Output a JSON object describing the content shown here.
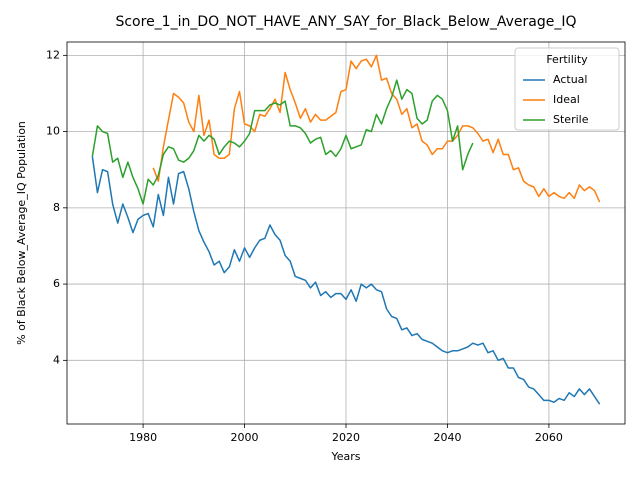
{
  "chart_data": {
    "type": "line",
    "title": "Score_1_in_DO_NOT_HAVE_ANY_SAY_for_Black_Below_Average_IQ",
    "xlabel": "Years",
    "ylabel": "% of Black Below_Average_IQ Population",
    "legend_title": "Fertility",
    "legend": "upper right",
    "grid": true,
    "x": [
      1970,
      1971,
      1972,
      1973,
      1974,
      1975,
      1976,
      1977,
      1978,
      1979,
      1980,
      1981,
      1982,
      1983,
      1984,
      1985,
      1986,
      1987,
      1988,
      1989,
      1990,
      1991,
      1992,
      1993,
      1994,
      1995,
      1996,
      1997,
      1998,
      1999,
      2000,
      2001,
      2002,
      2003,
      2004,
      2005,
      2006,
      2007,
      2008,
      2009,
      2010,
      2011,
      2012,
      2013,
      2014,
      2015,
      2016,
      2017,
      2018,
      2019,
      2020,
      2021,
      2022,
      2023,
      2024,
      2025,
      2026,
      2027,
      2028,
      2029,
      2030,
      2031,
      2032,
      2033,
      2034,
      2035,
      2036,
      2037,
      2038,
      2039,
      2040,
      2041,
      2042,
      2043,
      2044,
      2045,
      2046,
      2047,
      2048,
      2049,
      2050,
      2051,
      2052,
      2053,
      2054,
      2055,
      2056,
      2057,
      2058,
      2059,
      2060,
      2061,
      2062,
      2063,
      2064,
      2065,
      2066,
      2067,
      2068,
      2069,
      2070
    ],
    "series": [
      {
        "name": "Actual",
        "color": "#1f77b4",
        "values": [
          9.35,
          8.4,
          9.0,
          8.95,
          8.1,
          7.6,
          8.1,
          7.75,
          7.35,
          7.7,
          7.8,
          7.85,
          7.5,
          8.35,
          7.8,
          8.8,
          8.1,
          8.9,
          8.95,
          8.5,
          7.9,
          7.4,
          7.1,
          6.85,
          6.5,
          6.6,
          6.3,
          6.45,
          6.9,
          6.6,
          6.95,
          6.7,
          6.95,
          7.15,
          7.2,
          7.55,
          7.3,
          7.15,
          6.75,
          6.6,
          6.2,
          6.15,
          6.1,
          5.9,
          6.05,
          5.7,
          5.8,
          5.65,
          5.75,
          5.75,
          5.6,
          5.85,
          5.55,
          6.0,
          5.9,
          6.0,
          5.85,
          5.8,
          5.35,
          5.15,
          5.1,
          4.8,
          4.85,
          4.65,
          4.7,
          4.55,
          4.5,
          4.45,
          4.35,
          4.25,
          4.2,
          4.25,
          4.25,
          4.3,
          4.35,
          4.45,
          4.4,
          4.45,
          4.2,
          4.25,
          4.0,
          4.05,
          3.8,
          3.8,
          3.55,
          3.5,
          3.3,
          3.25,
          3.1,
          2.95,
          2.95,
          2.9,
          3.0,
          2.95,
          3.15,
          3.05,
          3.25,
          3.1,
          3.25,
          3.05,
          2.85
        ]
      },
      {
        "name": "Ideal",
        "color": "#ff7f0e",
        "values": [
          null,
          null,
          null,
          null,
          null,
          null,
          null,
          null,
          null,
          null,
          null,
          null,
          9.05,
          8.7,
          9.6,
          10.3,
          11.0,
          10.9,
          10.75,
          10.25,
          10.0,
          10.95,
          9.9,
          10.3,
          9.4,
          9.3,
          9.3,
          9.4,
          10.6,
          11.05,
          10.2,
          10.15,
          10.0,
          10.45,
          10.4,
          10.6,
          10.85,
          10.5,
          11.55,
          11.1,
          10.75,
          10.35,
          10.6,
          10.25,
          10.45,
          10.3,
          10.3,
          10.4,
          10.5,
          11.05,
          11.1,
          11.85,
          11.65,
          11.85,
          11.9,
          11.7,
          12.0,
          11.35,
          11.4,
          11.0,
          10.85,
          10.45,
          10.6,
          10.1,
          10.2,
          9.75,
          9.65,
          9.4,
          9.55,
          9.55,
          9.75,
          9.75,
          9.9,
          10.15,
          10.15,
          10.1,
          9.95,
          9.75,
          9.8,
          9.45,
          9.8,
          9.4,
          9.4,
          9.0,
          9.05,
          8.7,
          8.6,
          8.55,
          8.3,
          8.5,
          8.3,
          8.4,
          8.3,
          8.25,
          8.4,
          8.25,
          8.6,
          8.45,
          8.55,
          8.45,
          8.15
        ]
      },
      {
        "name": "Sterile",
        "color": "#2ca02c",
        "values": [
          9.35,
          10.15,
          10.0,
          9.95,
          9.2,
          9.3,
          8.8,
          9.2,
          8.8,
          8.5,
          8.1,
          8.75,
          8.6,
          8.85,
          9.4,
          9.6,
          9.55,
          9.25,
          9.2,
          9.3,
          9.5,
          9.9,
          9.75,
          9.9,
          9.8,
          9.4,
          9.6,
          9.75,
          9.7,
          9.6,
          9.75,
          9.95,
          10.55,
          10.55,
          10.55,
          10.7,
          10.75,
          10.7,
          10.8,
          10.15,
          10.15,
          10.1,
          9.95,
          9.7,
          9.8,
          9.85,
          9.4,
          9.5,
          9.35,
          9.55,
          9.9,
          9.55,
          9.6,
          9.65,
          10.05,
          10.0,
          10.45,
          10.2,
          10.6,
          10.9,
          11.35,
          10.85,
          11.1,
          11.0,
          10.35,
          10.2,
          10.3,
          10.8,
          10.95,
          10.85,
          10.55,
          9.75,
          10.15,
          9.0,
          9.4,
          9.7,
          null,
          null,
          null,
          null,
          null,
          null,
          null,
          null,
          null,
          null,
          null,
          null,
          null,
          null,
          null,
          null,
          null,
          null,
          null,
          null,
          null,
          null,
          null,
          null,
          null
        ]
      }
    ],
    "xlim": [
      1965,
      2075
    ],
    "xticks": [
      1980,
      2000,
      2020,
      2040,
      2060
    ],
    "ylim": [
      2.33,
      12.35
    ],
    "yticks": [
      4,
      6,
      8,
      10,
      12
    ]
  }
}
